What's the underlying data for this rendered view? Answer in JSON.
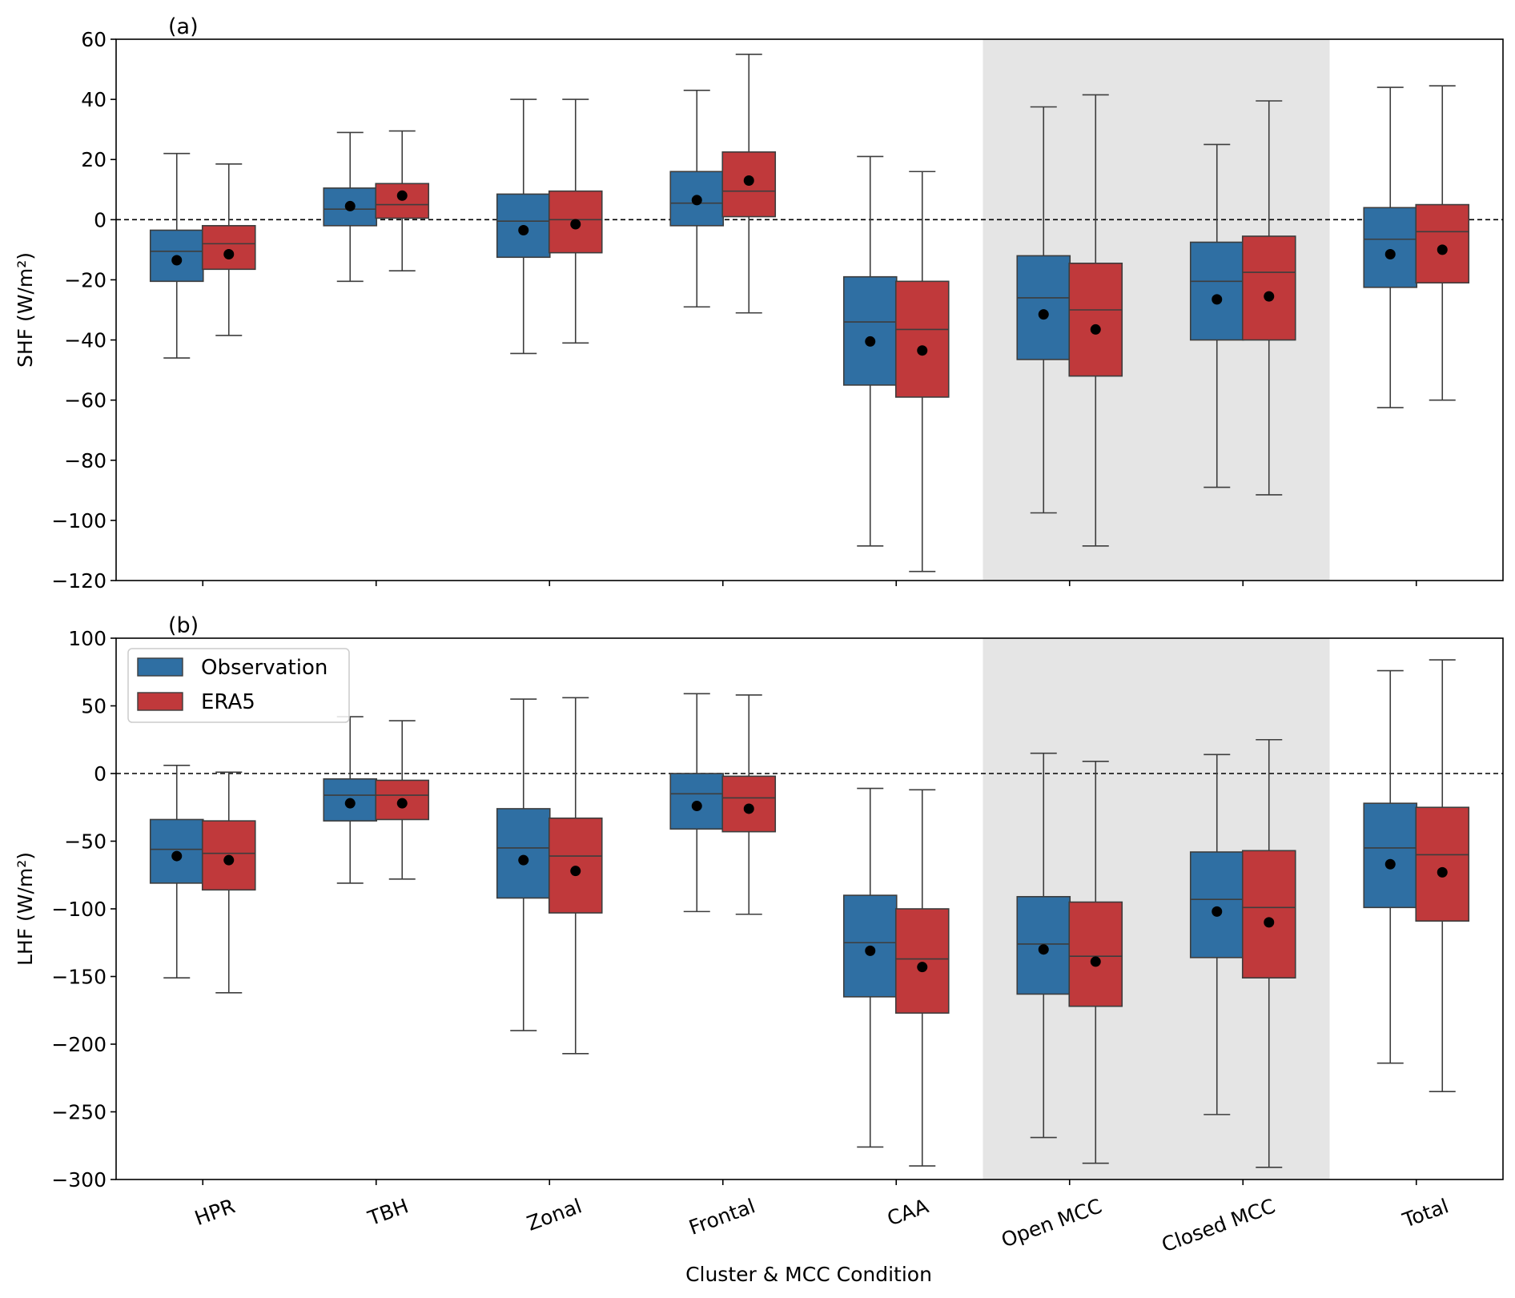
{
  "chart_data": {
    "type": "box",
    "xlabel": "Cluster & MCC Condition",
    "categories": [
      "HPR",
      "TBH",
      "Zonal",
      "Frontal",
      "CAA",
      "Open MCC",
      "Closed MCC",
      "Total"
    ],
    "highlighted_categories": [
      "Open MCC",
      "Closed MCC"
    ],
    "legend": {
      "placement": "upper-left of panel (b)",
      "entries": [
        {
          "label": "Observation",
          "color": "#2f6fa3"
        },
        {
          "label": "ERA5",
          "color": "#c0393b"
        }
      ]
    },
    "colors": {
      "observation": "#2f6fa3",
      "era5": "#c0393b",
      "highlight": "#e5e5e5",
      "mean_marker": "#000000"
    },
    "panels": [
      {
        "tag": "(a)",
        "ylabel": "SHF (W/m²)",
        "ylim": [
          -120,
          60
        ],
        "yticks": [
          -120,
          -100,
          -80,
          -60,
          -40,
          -20,
          0,
          20,
          40,
          60
        ],
        "ytick_labels": [
          "−120",
          "−100",
          "−80",
          "−60",
          "−40",
          "−20",
          "0",
          "20",
          "40",
          "60"
        ],
        "zero_line": true,
        "series": [
          {
            "name": "Observation",
            "boxes": [
              {
                "category": "HPR",
                "whislo": -46,
                "q1": -20.5,
                "med": -10.5,
                "q3": -3.5,
                "whishi": 22,
                "mean": -13.5
              },
              {
                "category": "TBH",
                "whislo": -20.5,
                "q1": -2,
                "med": 3.5,
                "q3": 10.5,
                "whishi": 29,
                "mean": 4.5
              },
              {
                "category": "Zonal",
                "whislo": -44.5,
                "q1": -12.5,
                "med": -0.5,
                "q3": 8.5,
                "whishi": 40,
                "mean": -3.5
              },
              {
                "category": "Frontal",
                "whislo": -29,
                "q1": -2,
                "med": 5.5,
                "q3": 16,
                "whishi": 43,
                "mean": 6.5
              },
              {
                "category": "CAA",
                "whislo": -108.5,
                "q1": -55,
                "med": -34,
                "q3": -19,
                "whishi": 21,
                "mean": -40.5
              },
              {
                "category": "Open MCC",
                "whislo": -97.5,
                "q1": -46.5,
                "med": -26,
                "q3": -12,
                "whishi": 37.5,
                "mean": -31.5
              },
              {
                "category": "Closed MCC",
                "whislo": -89,
                "q1": -40,
                "med": -20.5,
                "q3": -7.5,
                "whishi": 25,
                "mean": -26.5
              },
              {
                "category": "Total",
                "whislo": -62.5,
                "q1": -22.5,
                "med": -6.5,
                "q3": 4,
                "whishi": 44,
                "mean": -11.5
              }
            ]
          },
          {
            "name": "ERA5",
            "boxes": [
              {
                "category": "HPR",
                "whislo": -38.5,
                "q1": -16.5,
                "med": -8,
                "q3": -2,
                "whishi": 18.5,
                "mean": -11.5
              },
              {
                "category": "TBH",
                "whislo": -17,
                "q1": 0.5,
                "med": 5,
                "q3": 12,
                "whishi": 29.5,
                "mean": 8
              },
              {
                "category": "Zonal",
                "whislo": -41,
                "q1": -11,
                "med": 0,
                "q3": 9.5,
                "whishi": 40,
                "mean": -1.5
              },
              {
                "category": "Frontal",
                "whislo": -31,
                "q1": 1,
                "med": 9.5,
                "q3": 22.5,
                "whishi": 55,
                "mean": 13
              },
              {
                "category": "CAA",
                "whislo": -117,
                "q1": -59,
                "med": -36.5,
                "q3": -20.5,
                "whishi": 16,
                "mean": -43.5
              },
              {
                "category": "Open MCC",
                "whislo": -108.5,
                "q1": -52,
                "med": -30,
                "q3": -14.5,
                "whishi": 41.5,
                "mean": -36.5
              },
              {
                "category": "Closed MCC",
                "whislo": -91.5,
                "q1": -40,
                "med": -17.5,
                "q3": -5.5,
                "whishi": 39.5,
                "mean": -25.5
              },
              {
                "category": "Total",
                "whislo": -60,
                "q1": -21,
                "med": -4,
                "q3": 5,
                "whishi": 44.5,
                "mean": -10
              }
            ]
          }
        ]
      },
      {
        "tag": "(b)",
        "ylabel": "LHF (W/m²)",
        "ylim": [
          -300,
          100
        ],
        "yticks": [
          -300,
          -250,
          -200,
          -150,
          -100,
          -50,
          0,
          50,
          100
        ],
        "ytick_labels": [
          "−300",
          "−250",
          "−200",
          "−150",
          "−100",
          "−50",
          "0",
          "50",
          "100"
        ],
        "zero_line": true,
        "series": [
          {
            "name": "Observation",
            "boxes": [
              {
                "category": "HPR",
                "whislo": -151,
                "q1": -81,
                "med": -56,
                "q3": -34,
                "whishi": 6,
                "mean": -61
              },
              {
                "category": "TBH",
                "whislo": -81,
                "q1": -35,
                "med": -16,
                "q3": -4,
                "whishi": 42,
                "mean": -22
              },
              {
                "category": "Zonal",
                "whislo": -190,
                "q1": -92,
                "med": -55,
                "q3": -26,
                "whishi": 55,
                "mean": -64
              },
              {
                "category": "Frontal",
                "whislo": -102,
                "q1": -41,
                "med": -15,
                "q3": 0,
                "whishi": 59,
                "mean": -24
              },
              {
                "category": "CAA",
                "whislo": -276,
                "q1": -165,
                "med": -125,
                "q3": -90,
                "whishi": -11,
                "mean": -131
              },
              {
                "category": "Open MCC",
                "whislo": -269,
                "q1": -163,
                "med": -126,
                "q3": -91,
                "whishi": 15,
                "mean": -130
              },
              {
                "category": "Closed MCC",
                "whislo": -252,
                "q1": -136,
                "med": -93,
                "q3": -58,
                "whishi": 14,
                "mean": -102
              },
              {
                "category": "Total",
                "whislo": -214,
                "q1": -99,
                "med": -55,
                "q3": -22,
                "whishi": 76,
                "mean": -67
              }
            ]
          },
          {
            "name": "ERA5",
            "boxes": [
              {
                "category": "HPR",
                "whislo": -162,
                "q1": -86,
                "med": -59,
                "q3": -35,
                "whishi": 1,
                "mean": -64
              },
              {
                "category": "TBH",
                "whislo": -78,
                "q1": -34,
                "med": -16,
                "q3": -5,
                "whishi": 39,
                "mean": -22
              },
              {
                "category": "Zonal",
                "whislo": -207,
                "q1": -103,
                "med": -61,
                "q3": -33,
                "whishi": 56,
                "mean": -72
              },
              {
                "category": "Frontal",
                "whislo": -104,
                "q1": -43,
                "med": -18,
                "q3": -2,
                "whishi": 58,
                "mean": -26
              },
              {
                "category": "CAA",
                "whislo": -290,
                "q1": -177,
                "med": -137,
                "q3": -100,
                "whishi": -12,
                "mean": -143
              },
              {
                "category": "Open MCC",
                "whislo": -288,
                "q1": -172,
                "med": -135,
                "q3": -95,
                "whishi": 9,
                "mean": -139
              },
              {
                "category": "Closed MCC",
                "whislo": -291,
                "q1": -151,
                "med": -99,
                "q3": -57,
                "whishi": 25,
                "mean": -110
              },
              {
                "category": "Total",
                "whislo": -235,
                "q1": -109,
                "med": -60,
                "q3": -25,
                "whishi": 84,
                "mean": -73
              }
            ]
          }
        ]
      }
    ]
  }
}
